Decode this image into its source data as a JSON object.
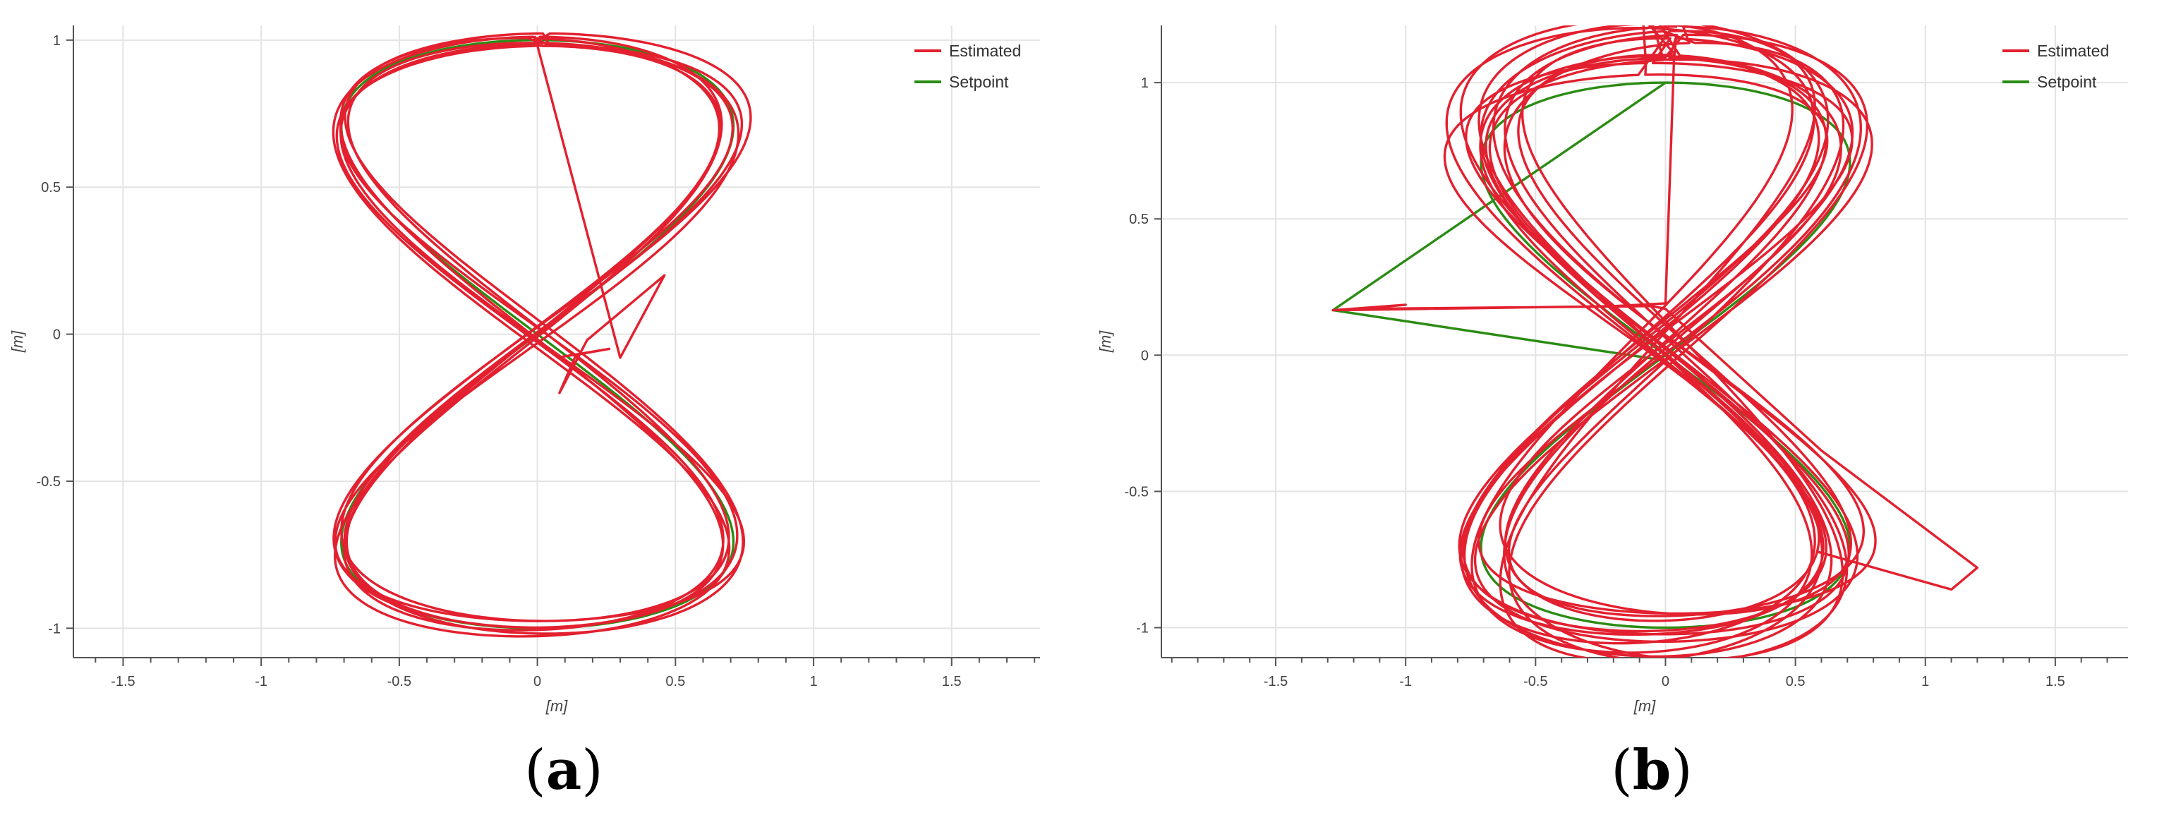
{
  "chart_data": [
    {
      "type": "line",
      "caption_open": "(",
      "caption_letter": "a",
      "caption_close": ")",
      "xlabel": "[m]",
      "ylabel": "[m]",
      "xlim": [
        -1.68,
        1.82
      ],
      "ylim": [
        -1.1,
        1.05
      ],
      "xticks": [
        -1.5,
        -1,
        -0.5,
        0,
        0.5,
        1,
        1.5
      ],
      "xtick_labels": [
        "-1.5",
        "-1",
        "-0.5",
        "0",
        "0.5",
        "1",
        "1.5"
      ],
      "yticks": [
        -1,
        -0.5,
        0,
        0.5,
        1
      ],
      "ytick_labels": [
        "-1",
        "-0.5",
        "0",
        "0.5",
        "1"
      ],
      "grid": true,
      "legend_position": "top-right",
      "series": [
        {
          "name": "Estimated",
          "color": "#e3202f",
          "generator": "figure8-noisy",
          "center": [
            0,
            0
          ],
          "amp_x": 0.71,
          "amp_y": 1.0,
          "loops": 7,
          "jitter": 0.035,
          "extra_path": [
            [
              0.3,
              -0.08
            ],
            [
              0.46,
              0.2
            ],
            [
              0.18,
              -0.02
            ],
            [
              0.08,
              -0.2
            ],
            [
              0.14,
              -0.07
            ],
            [
              0.26,
              -0.05
            ],
            [
              0.07,
              -0.08
            ]
          ]
        },
        {
          "name": "Setpoint",
          "color": "#2b8c14",
          "generator": "figure8",
          "center": [
            0,
            0
          ],
          "amp_x": 0.71,
          "amp_y": 1.0,
          "loops": 1
        }
      ]
    },
    {
      "type": "line",
      "caption_open": "(",
      "caption_letter": "b",
      "caption_close": ")",
      "xlabel": "[m]",
      "ylabel": "[m]",
      "xlim": [
        -1.94,
        1.78
      ],
      "ylim": [
        -1.11,
        1.21
      ],
      "xticks": [
        -1.5,
        -1,
        -0.5,
        0,
        0.5,
        1,
        1.5
      ],
      "xtick_labels": [
        "-1.5",
        "-1",
        "-0.5",
        "0",
        "0.5",
        "1",
        "1.5"
      ],
      "yticks": [
        -1,
        -0.5,
        0,
        0.5,
        1
      ],
      "ytick_labels": [
        "-1",
        "-0.5",
        "0",
        "0.5",
        "1"
      ],
      "grid": true,
      "legend_position": "top-right",
      "series": [
        {
          "name": "Estimated",
          "color": "#e3202f",
          "generator": "figure8-noisy",
          "center": [
            -0.02,
            0.05
          ],
          "amp_x": 0.68,
          "amp_y": 1.09,
          "loops": 14,
          "jitter": 0.1,
          "extra_path": [
            [
              0.0,
              0.19
            ],
            [
              -0.2,
              0.18
            ],
            [
              -1.28,
              0.165
            ],
            [
              -1.0,
              0.185
            ],
            [
              -1.18,
              0.17
            ],
            [
              -0.05,
              0.18
            ],
            [
              0.0,
              0.17
            ],
            [
              0.6,
              -0.35
            ],
            [
              1.2,
              -0.78
            ],
            [
              1.1,
              -0.86
            ],
            [
              0.58,
              -0.72
            ]
          ]
        },
        {
          "name": "Setpoint",
          "color": "#2b8c14",
          "generator": "figure8",
          "center": [
            0,
            0
          ],
          "amp_x": 0.71,
          "amp_y": 1.0,
          "loops": 1,
          "extra_path": [
            [
              -1.28,
              0.165
            ],
            [
              0.0,
              -0.02
            ]
          ]
        }
      ]
    }
  ]
}
